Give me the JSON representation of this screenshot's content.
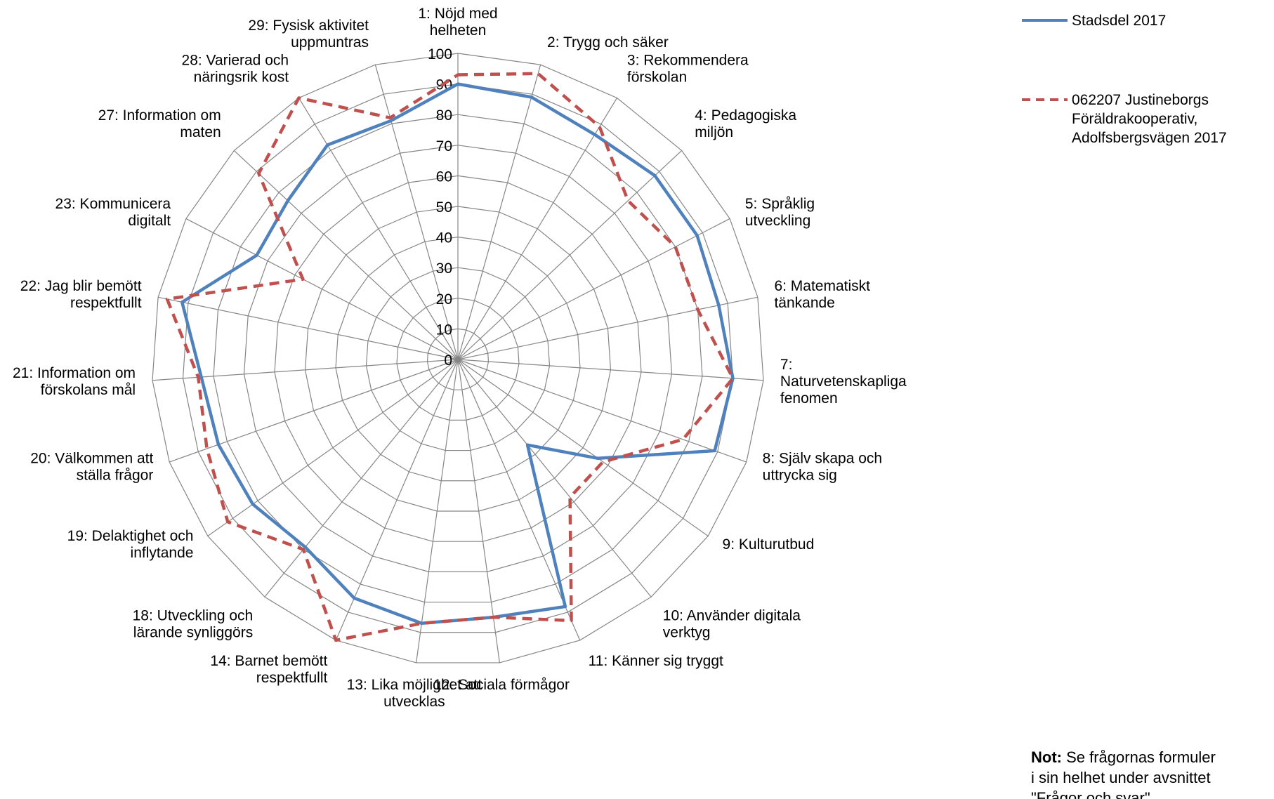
{
  "chart_data": {
    "type": "radar",
    "categories": [
      [
        "1: Nöjd med",
        "helheten"
      ],
      [
        "2: Trygg och säker"
      ],
      [
        "3: Rekommendera",
        "förskolan"
      ],
      [
        "4: Pedagogiska",
        "miljön"
      ],
      [
        "5: Språklig",
        "utveckling"
      ],
      [
        "6: Matematiskt",
        "tänkande"
      ],
      [
        "7:",
        "Naturvetenskapliga",
        "fenomen"
      ],
      [
        "8: Själv skapa och",
        "uttrycka sig"
      ],
      [
        "9: Kulturutbud"
      ],
      [
        "10: Använder digitala",
        "verktyg"
      ],
      [
        "11: Känner sig tryggt"
      ],
      [
        "12: Sociala förmågor"
      ],
      [
        "13: Lika möjlighet att",
        "utvecklas"
      ],
      [
        "14: Barnet bemött",
        "respektfullt"
      ],
      [
        "18: Utveckling och",
        "lärande synliggörs"
      ],
      [
        "19: Delaktighet och",
        "inflytande"
      ],
      [
        "20: Välkommen att",
        "ställa frågor"
      ],
      [
        "21: Information om",
        "förskolans mål"
      ],
      [
        "22: Jag blir bemött",
        "respektfullt"
      ],
      [
        "23: Kommunicera",
        "digitalt"
      ],
      [
        "27: Information om",
        "maten"
      ],
      [
        "28: Varierad och",
        "näringsrik kost"
      ],
      [
        "29: Fysisk aktivitet",
        "uppmuntras"
      ]
    ],
    "r_ticks": [
      "0",
      "10",
      "20",
      "30",
      "40",
      "50",
      "60",
      "70",
      "80",
      "90",
      "100"
    ],
    "r_range": [
      0,
      100
    ],
    "series": [
      {
        "name": "Stadsdel 2017",
        "color": "#4f81bd",
        "style": "solid",
        "values": [
          90,
          89,
          86,
          88,
          88,
          87,
          90,
          89,
          56,
          36,
          88,
          85,
          87,
          85,
          79,
          82,
          83,
          84,
          92,
          74,
          76,
          82,
          81
        ]
      },
      {
        "name": "062207 Justineborgs Föräldrakooperativ, Adolfsbergsvägen 2017",
        "color": "#c0504d",
        "style": "dashed",
        "values": [
          93,
          97,
          89,
          76,
          80,
          80,
          90,
          78,
          58,
          58,
          93,
          85,
          87,
          100,
          80,
          92,
          87,
          85,
          97,
          57,
          89,
          100,
          82
        ]
      }
    ],
    "grid": true,
    "legend_position": "top-right"
  },
  "note": {
    "bold": "Not:",
    "line1": " Se frågornas formuler",
    "line2": "i sin helhet under avsnittet",
    "line3": "\"Frågor och svar\""
  }
}
